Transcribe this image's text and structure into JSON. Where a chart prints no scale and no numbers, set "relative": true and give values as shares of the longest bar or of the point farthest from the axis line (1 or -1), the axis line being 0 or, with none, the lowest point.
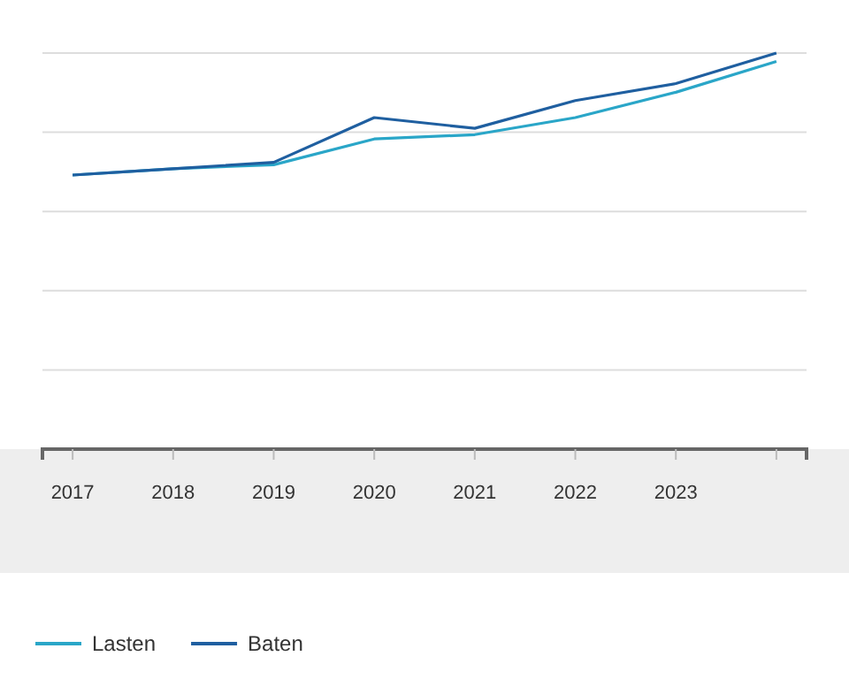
{
  "chart_data": {
    "type": "line",
    "relative": true,
    "grid": true,
    "legend": "bottom left",
    "categories": [
      "2017",
      "2018",
      "2019",
      "2020",
      "2021",
      "2022",
      "2023",
      null
    ],
    "series": [
      {
        "name": "Lasten",
        "color": "#2aa6c8",
        "values": [
          0.692,
          0.708,
          0.718,
          0.783,
          0.794,
          0.837,
          0.901,
          0.979
        ]
      },
      {
        "name": "Baten",
        "color": "#1f5fa0",
        "values": [
          0.692,
          0.708,
          0.724,
          0.837,
          0.81,
          0.88,
          0.923,
          1
        ]
      }
    ]
  }
}
